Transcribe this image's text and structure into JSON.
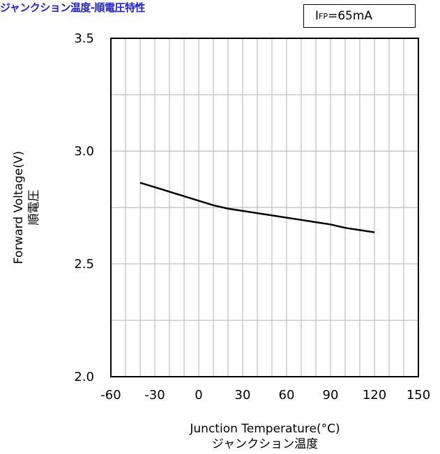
{
  "chart_data": {
    "type": "line",
    "title": "ジャンクション温度-順電圧特性",
    "condition": {
      "prefix": "I",
      "subscript": "FP",
      "value": "=65mA"
    },
    "xlabel": "Junction Temperature(°C)",
    "xlabel_sub": "ジャンクション温度",
    "ylabel": "Forward Voltage(V)",
    "ylabel_sub": "順電圧",
    "xlim": [
      -60,
      150
    ],
    "ylim": [
      2.0,
      3.5
    ],
    "x_ticks": [
      "-60",
      "-30",
      "0",
      "30",
      "60",
      "90",
      "120",
      "150"
    ],
    "y_ticks": [
      "2.0",
      "2.5",
      "3.0",
      "3.5"
    ],
    "grid": true,
    "series": [
      {
        "x": [
          -40,
          -30,
          -20,
          -10,
          0,
          10,
          20,
          30,
          40,
          50,
          60,
          70,
          80,
          90,
          100,
          110,
          120
        ],
        "values": [
          2.86,
          2.84,
          2.82,
          2.8,
          2.78,
          2.76,
          2.745,
          2.735,
          2.725,
          2.715,
          2.705,
          2.695,
          2.685,
          2.675,
          2.66,
          2.65,
          2.64
        ]
      }
    ]
  },
  "colors": {
    "title": "#2222cc",
    "grid": "#b0b0b0",
    "axis": "#000000",
    "line": "#000000"
  }
}
